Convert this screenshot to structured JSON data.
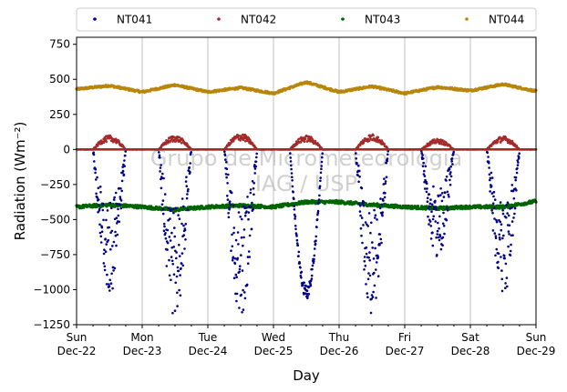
{
  "chart_data": {
    "type": "scatter",
    "title": "",
    "xlabel": "Day",
    "ylabel": "Radiation (Wm⁻²)",
    "ylim": [
      -1250,
      800
    ],
    "xlim": [
      0,
      7
    ],
    "yticks": [
      -1250,
      -1000,
      -750,
      -500,
      -250,
      0,
      250,
      500,
      750
    ],
    "ytick_labels": [
      "−1250",
      "−1000",
      "−750",
      "−500",
      "−250",
      "0",
      "250",
      "500",
      "750"
    ],
    "xticks": [
      {
        "day": "Sun",
        "date": "Dec-22"
      },
      {
        "day": "Mon",
        "date": "Dec-23"
      },
      {
        "day": "Tue",
        "date": "Dec-24"
      },
      {
        "day": "Wed",
        "date": "Dec-25"
      },
      {
        "day": "Thu",
        "date": "Dec-26"
      },
      {
        "day": "Fri",
        "date": "Dec-27"
      },
      {
        "day": "Sat",
        "date": "Dec-28"
      },
      {
        "day": "Sun",
        "date": "Dec-29"
      }
    ],
    "grid": "vertical",
    "legend_placement": "top",
    "watermark": [
      "Grupo de Micrometeorologia",
      "IAG / USP"
    ],
    "series": [
      {
        "name": "NT041",
        "color": "#00008b",
        "kind": "shortwave-down",
        "daily_peak": [
          -1060,
          -1200,
          -1200,
          -1070,
          -1170,
          -800,
          -1050
        ],
        "note_unit": "Wm-2"
      },
      {
        "name": "NT042",
        "color": "#a52a2a",
        "kind": "shortwave-up",
        "daily_peak": [
          100,
          100,
          115,
          100,
          110,
          75,
          95
        ]
      },
      {
        "name": "NT043",
        "color": "#006400",
        "kind": "longwave-down",
        "x": [
          0,
          0.5,
          1,
          1.5,
          2,
          2.5,
          3,
          3.5,
          4,
          4.5,
          5,
          5.5,
          6,
          6.5,
          7
        ],
        "y": [
          -410,
          -395,
          -410,
          -430,
          -410,
          -400,
          -410,
          -375,
          -375,
          -395,
          -410,
          -420,
          -410,
          -410,
          -370
        ]
      },
      {
        "name": "NT044",
        "color": "#b8860b",
        "kind": "longwave-up",
        "x": [
          0,
          0.5,
          1,
          1.5,
          2,
          2.5,
          3,
          3.5,
          4,
          4.5,
          5,
          5.5,
          6,
          6.5,
          7
        ],
        "y": [
          430,
          455,
          410,
          460,
          410,
          440,
          400,
          480,
          410,
          450,
          400,
          445,
          420,
          465,
          415
        ]
      }
    ]
  }
}
